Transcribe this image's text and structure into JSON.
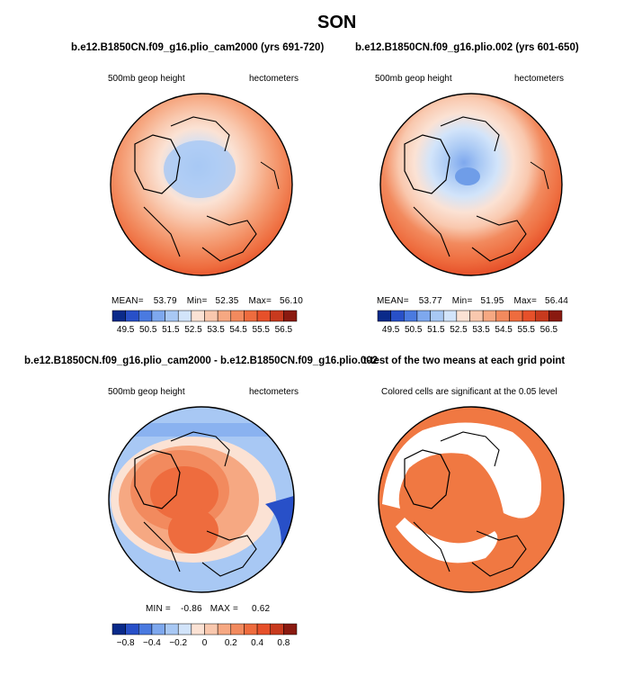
{
  "page": {
    "title": "SON"
  },
  "chart_data": [
    {
      "type": "heatmap",
      "panel": "top-left",
      "title": "b.e12.B1850CN.f09_g16.plio_cam2000 (yrs 691-720)",
      "left_label": "500mb geop height",
      "right_label": "hectometers",
      "stats": {
        "mean_label": "MEAN=",
        "mean": "53.79",
        "min_label": "Min=",
        "min": "52.35",
        "max_label": "Max=",
        "max": "56.10"
      },
      "colorbar_ticks": [
        "49.5",
        "50.5",
        "51.5",
        "52.5",
        "53.5",
        "54.5",
        "55.5",
        "56.5"
      ],
      "levels": [
        50,
        56.5
      ]
    },
    {
      "type": "heatmap",
      "panel": "top-right",
      "title": "b.e12.B1850CN.f09_g16.plio.002 (yrs 601-650)",
      "left_label": "500mb geop height",
      "right_label": "hectometers",
      "stats": {
        "mean_label": "MEAN=",
        "mean": "53.77",
        "min_label": "Min=",
        "min": "51.95",
        "max_label": "Max=",
        "max": "56.44"
      },
      "colorbar_ticks": [
        "49.5",
        "50.5",
        "51.5",
        "52.5",
        "53.5",
        "54.5",
        "55.5",
        "56.5"
      ],
      "levels": [
        50,
        56.5
      ]
    },
    {
      "type": "heatmap",
      "panel": "bottom-left",
      "title": "b.e12.B1850CN.f09_g16.plio_cam2000 - b.e12.B1850CN.f09_g16.plio.002",
      "left_label": "500mb geop height",
      "right_label": "hectometers",
      "stats": {
        "min_label": "MIN =",
        "min": "-0.86",
        "max_label": "MAX =",
        "max": "0.62"
      },
      "colorbar_ticks": [
        "−0.8",
        "−0.4",
        "−0.2",
        "0",
        "0.2",
        "0.4",
        "0.8"
      ],
      "levels": [
        -0.8,
        0.8
      ]
    },
    {
      "type": "heatmap",
      "panel": "bottom-right",
      "title": "t-test of the two means at each grid point",
      "left_label": "Colored cells are significant at the 0.05 level",
      "significance_level": 0.05
    }
  ],
  "colors": {
    "warm_scale": [
      "#0a2a8a",
      "#2850c8",
      "#4a7ae0",
      "#7ea8ee",
      "#a8c8f4",
      "#d2e4fa",
      "#fbe2d4",
      "#f9c8ae",
      "#f6a882",
      "#f28a5e",
      "#ee6c3e",
      "#e6502a",
      "#c83a1e",
      "#8a1a10"
    ],
    "significance": "#f07842"
  }
}
